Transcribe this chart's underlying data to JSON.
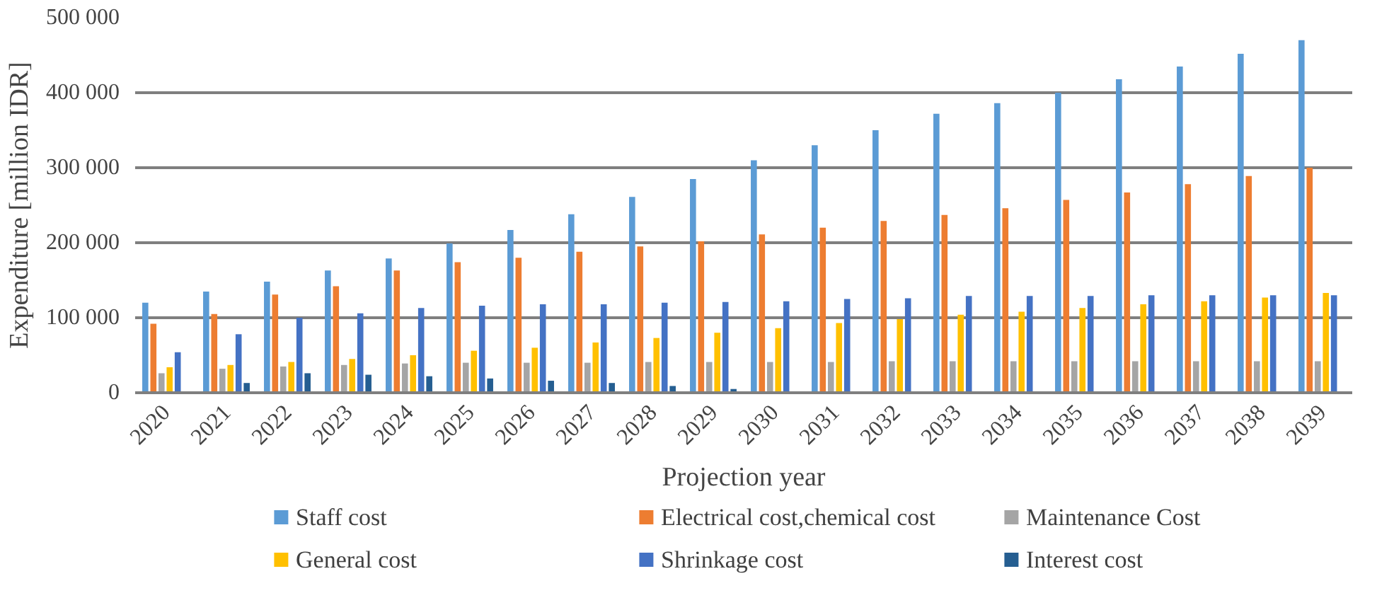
{
  "chart_data": {
    "type": "bar",
    "xlabel": "Projection year",
    "ylabel": "Expenditure [million IDR]",
    "categories": [
      "2020",
      "2021",
      "2022",
      "2023",
      "2024",
      "2025",
      "2026",
      "2027",
      "2028",
      "2029",
      "2030",
      "2031",
      "2032",
      "2033",
      "2034",
      "2035",
      "2036",
      "2037",
      "2038",
      "2039"
    ],
    "series": [
      {
        "name": "Staff cost",
        "color": "#5b9bd5",
        "values": [
          120000,
          135000,
          148000,
          163000,
          179000,
          199000,
          217000,
          238000,
          261000,
          285000,
          310000,
          330000,
          350000,
          372000,
          386000,
          400000,
          418000,
          435000,
          452000,
          470000
        ]
      },
      {
        "name": "Electrical cost,chemical cost",
        "color": "#ed7d31",
        "values": [
          92000,
          105000,
          131000,
          142000,
          163000,
          174000,
          180000,
          188000,
          195000,
          202000,
          211000,
          220000,
          229000,
          237000,
          246000,
          257000,
          267000,
          278000,
          289000,
          300000
        ]
      },
      {
        "name": "Maintenance Cost",
        "color": "#a5a5a5",
        "values": [
          26000,
          32000,
          35000,
          37000,
          39000,
          40000,
          40000,
          40000,
          41000,
          41000,
          41000,
          41000,
          42000,
          42000,
          42000,
          42000,
          42000,
          42000,
          42000,
          42000
        ]
      },
      {
        "name": "General cost",
        "color": "#ffc000",
        "values": [
          34000,
          37000,
          41000,
          45000,
          50000,
          56000,
          60000,
          67000,
          73000,
          80000,
          86000,
          93000,
          98000,
          104000,
          108000,
          113000,
          118000,
          122000,
          127000,
          133000
        ]
      },
      {
        "name": "Shrinkage cost",
        "color": "#4472c4",
        "values": [
          54000,
          78000,
          100000,
          106000,
          113000,
          116000,
          118000,
          118000,
          120000,
          121000,
          122000,
          125000,
          126000,
          129000,
          129000,
          129000,
          130000,
          130000,
          130000,
          130000
        ]
      },
      {
        "name": "Interest cost",
        "color": "#255e91",
        "values": [
          0,
          13000,
          26000,
          24000,
          22000,
          19000,
          16000,
          13000,
          9000,
          5000,
          1000,
          0,
          0,
          0,
          0,
          0,
          0,
          0,
          0,
          0
        ]
      }
    ],
    "ylim": [
      0,
      500000
    ],
    "yticks": [
      {
        "value": 0,
        "label": "0"
      },
      {
        "value": 100000,
        "label": "100 000"
      },
      {
        "value": 200000,
        "label": "200 000"
      },
      {
        "value": 300000,
        "label": "300 000"
      },
      {
        "value": 400000,
        "label": "400 000"
      },
      {
        "value": 500000,
        "label": "500 000"
      }
    ],
    "grid": "y",
    "legend": "bottom"
  }
}
